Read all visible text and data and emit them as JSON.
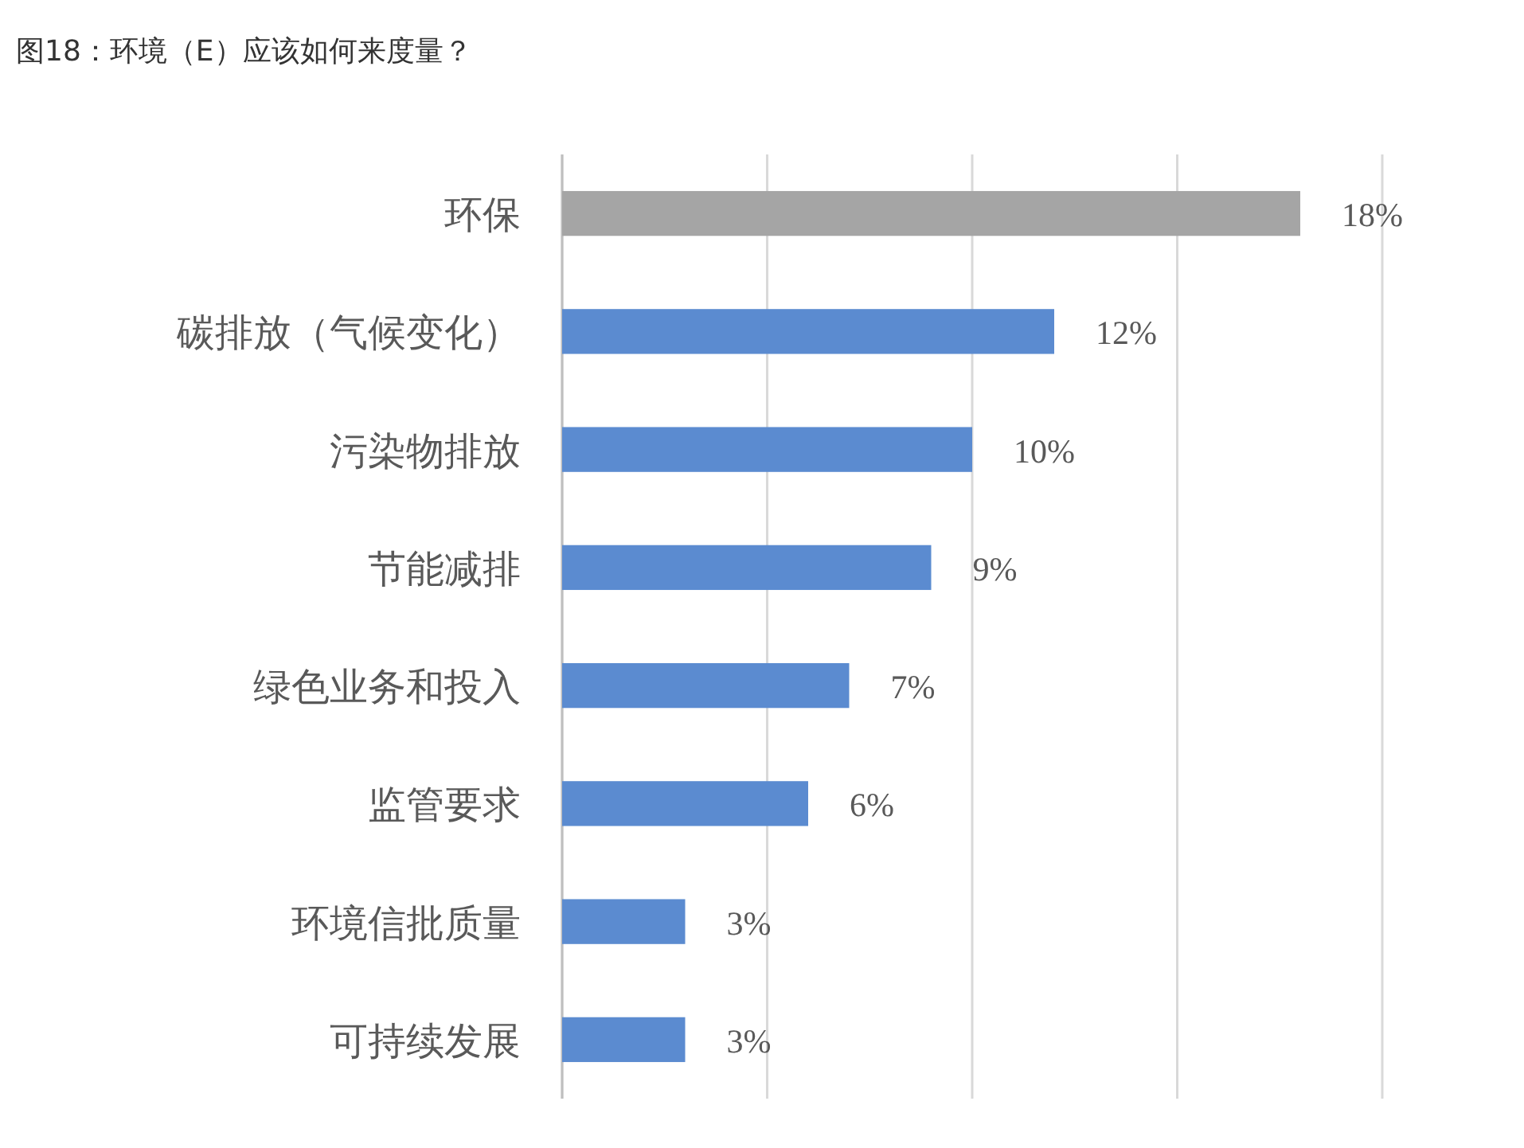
{
  "chart_data": {
    "type": "bar",
    "orientation": "horizontal",
    "title": "图18：环境（E）应该如何来度量？",
    "categories": [
      "环保",
      "碳排放（气候变化）",
      "污染物排放",
      "节能减排",
      "绿色业务和投入",
      "监管要求",
      "环境信批质量",
      "可持续发展"
    ],
    "values": [
      18,
      12,
      10,
      9,
      7,
      6,
      3,
      3
    ],
    "value_labels": [
      "18%",
      "12%",
      "10%",
      "9%",
      "7%",
      "6%",
      "3%",
      "3%"
    ],
    "colors": [
      "#a5a5a5",
      "#5b8bd0",
      "#5b8bd0",
      "#5b8bd0",
      "#5b8bd0",
      "#5b8bd0",
      "#5b8bd0",
      "#5b8bd0"
    ],
    "xlim": [
      0,
      20
    ],
    "xticks": [
      {
        "value": 0,
        "label": null
      },
      {
        "value": 5,
        "label": null
      },
      {
        "value": 10,
        "label": null
      },
      {
        "value": 15,
        "label": null
      },
      {
        "value": 20,
        "label": null
      }
    ],
    "grid": "x",
    "tick_labels": "y"
  }
}
